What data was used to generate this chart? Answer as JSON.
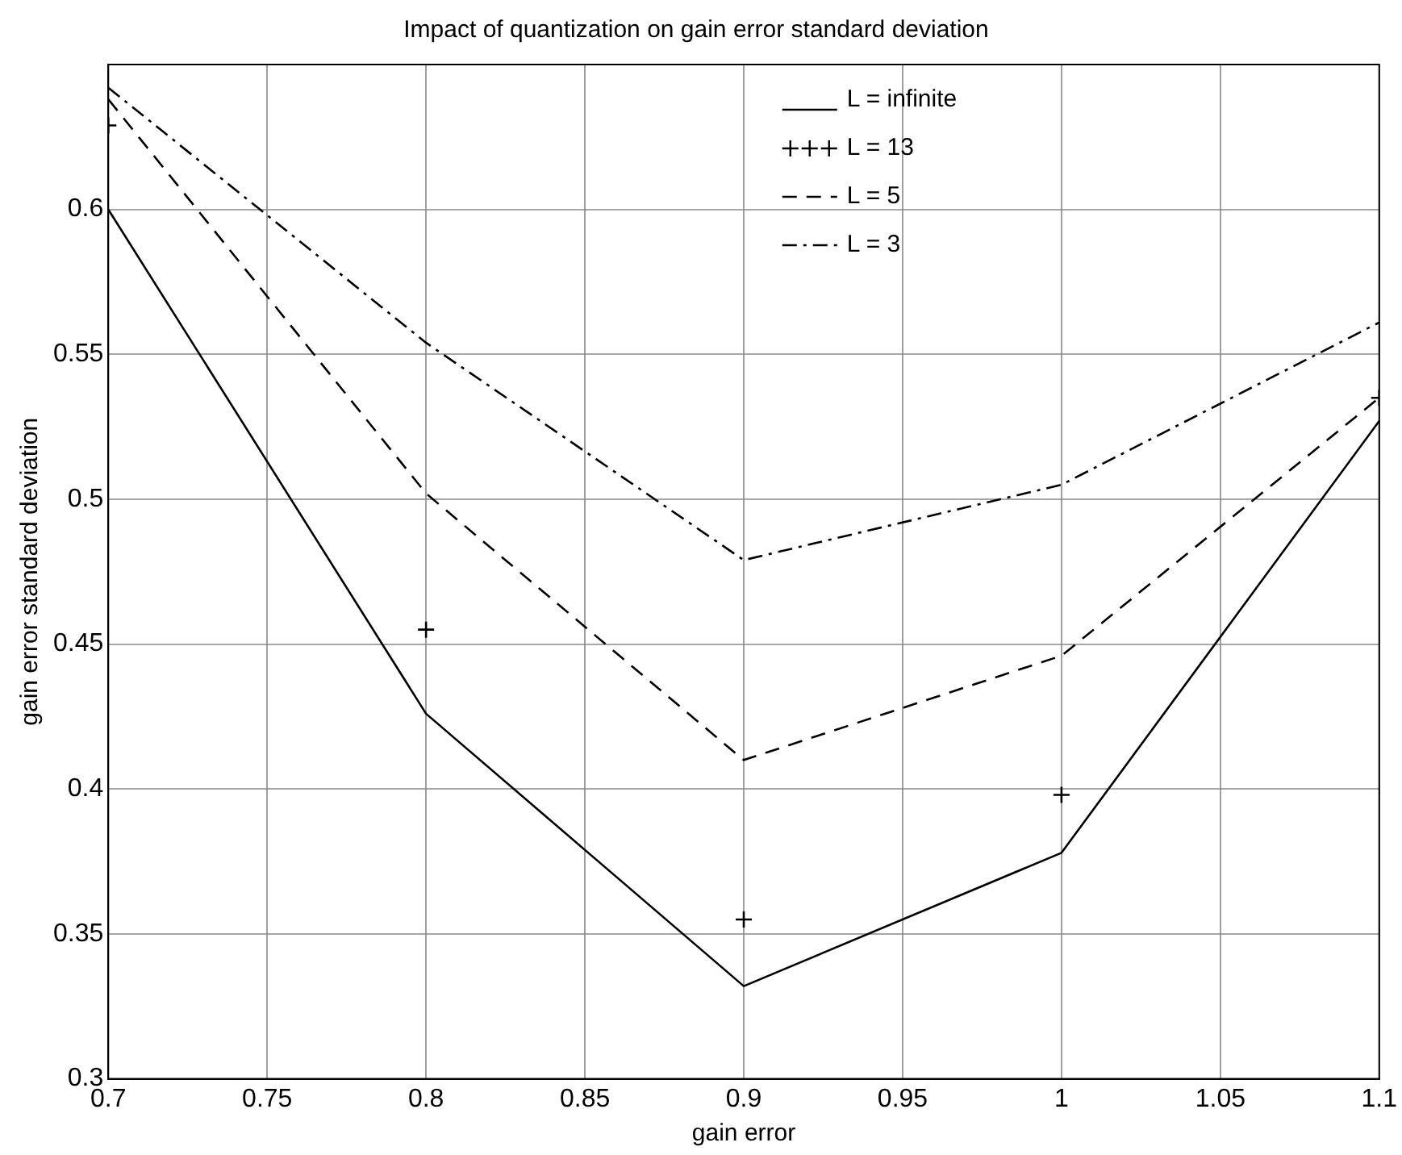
{
  "chart_data": {
    "type": "line",
    "title": "Impact of quantization on gain error standard deviation",
    "xlabel": "gain error",
    "ylabel": "gain error standard deviation",
    "x": [
      0.7,
      0.8,
      0.9,
      1.0,
      1.1
    ],
    "series": [
      {
        "name": "L = infinite",
        "color": "#000000",
        "values": [
          0.6,
          0.426,
          0.332,
          0.378,
          0.527
        ],
        "line_style": "solid",
        "marker": "none"
      },
      {
        "name": "L = 13",
        "type": "scatter",
        "color": "#000000",
        "values": [
          0.629,
          0.455,
          0.355,
          0.398,
          0.535
        ],
        "marker": "cross"
      },
      {
        "name": "L = 5",
        "color": "#000000",
        "values": [
          0.638,
          0.502,
          0.41,
          0.446,
          0.535
        ],
        "line_style": "dashed",
        "marker": "none"
      },
      {
        "name": "L = 3",
        "color": "#000000",
        "values": [
          0.642,
          0.554,
          0.479,
          0.505,
          0.561
        ],
        "line_style": "dashdot",
        "marker": "none"
      }
    ],
    "xlim": [
      0.7,
      1.1
    ],
    "xticks": [
      0.7,
      0.75,
      0.8,
      0.85,
      0.9,
      0.95,
      1,
      1.05,
      1.1
    ],
    "ylim": [
      0.3,
      0.65
    ],
    "yticks": [
      0.3,
      0.35,
      0.4,
      0.45,
      0.5,
      0.55,
      0.6
    ],
    "grid": true,
    "legend": "top right"
  }
}
